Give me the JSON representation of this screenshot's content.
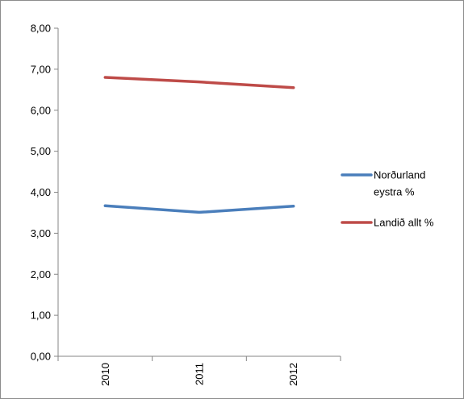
{
  "chart_data": {
    "type": "line",
    "title": "",
    "xlabel": "",
    "ylabel": "",
    "categories": [
      "2010",
      "2011",
      "2012"
    ],
    "ylim": [
      0,
      8
    ],
    "y_ticks": [
      0,
      1,
      2,
      3,
      4,
      5,
      6,
      7,
      8
    ],
    "y_tick_labels": [
      "0,00",
      "1,00",
      "2,00",
      "3,00",
      "4,00",
      "5,00",
      "6,00",
      "7,00",
      "8,00"
    ],
    "grid": false,
    "legend_position": "right",
    "series": [
      {
        "name": "Norðurland eystra %",
        "name_lines": [
          "Norðurland",
          "eystra %"
        ],
        "values": [
          3.67,
          3.51,
          3.66
        ],
        "color": "#4a7ebb"
      },
      {
        "name": "Landið allt %",
        "name_lines": [
          "Landið allt %"
        ],
        "values": [
          6.8,
          6.69,
          6.55
        ],
        "color": "#be4b48"
      }
    ]
  }
}
